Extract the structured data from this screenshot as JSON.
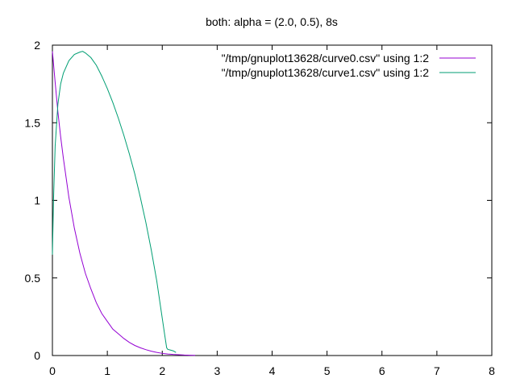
{
  "chart_data": {
    "type": "line",
    "title": "both: alpha = (2.0, 0.5), 8s",
    "xlabel": "",
    "ylabel": "",
    "xlim": [
      0,
      8
    ],
    "ylim": [
      0,
      2
    ],
    "x_ticks": [
      {
        "value": 0,
        "label": "0"
      },
      {
        "value": 1,
        "label": "1"
      },
      {
        "value": 2,
        "label": "2"
      },
      {
        "value": 3,
        "label": "3"
      },
      {
        "value": 4,
        "label": "4"
      },
      {
        "value": 5,
        "label": "5"
      },
      {
        "value": 6,
        "label": "6"
      },
      {
        "value": 7,
        "label": "7"
      },
      {
        "value": 8,
        "label": "8"
      }
    ],
    "y_ticks": [
      {
        "value": 0,
        "label": "0"
      },
      {
        "value": 0.5,
        "label": "0.5"
      },
      {
        "value": 1,
        "label": "1"
      },
      {
        "value": 1.5,
        "label": "1.5"
      },
      {
        "value": 2,
        "label": "2"
      }
    ],
    "grid": false,
    "legend_position": "top-right",
    "series": [
      {
        "name": "\"/tmp/gnuplot13628/curve0.csv\" using 1:2",
        "color": "#9400d3",
        "x": [
          0,
          0.05,
          0.1,
          0.15,
          0.2,
          0.3,
          0.4,
          0.5,
          0.6,
          0.7,
          0.8,
          0.9,
          1.0,
          1.1,
          1.2,
          1.3,
          1.4,
          1.5,
          1.6,
          1.7,
          1.8,
          1.9,
          2.0,
          2.1,
          2.2,
          2.3,
          2.4,
          2.5,
          2.6
        ],
        "y": [
          1.96,
          1.76,
          1.57,
          1.41,
          1.27,
          1.02,
          0.82,
          0.66,
          0.53,
          0.43,
          0.34,
          0.27,
          0.22,
          0.17,
          0.14,
          0.11,
          0.085,
          0.065,
          0.05,
          0.038,
          0.028,
          0.02,
          0.014,
          0.01,
          0.007,
          0.005,
          0.003,
          0.002,
          0.001
        ]
      },
      {
        "name": "\"/tmp/gnuplot13628/curve1.csv\" using 1:2",
        "color": "#009e73",
        "x": [
          0,
          0.02,
          0.05,
          0.1,
          0.15,
          0.2,
          0.3,
          0.4,
          0.5,
          0.55,
          0.6,
          0.7,
          0.8,
          0.9,
          1.0,
          1.1,
          1.2,
          1.3,
          1.4,
          1.5,
          1.6,
          1.7,
          1.8,
          1.9,
          2.0,
          2.05,
          2.08,
          2.1,
          2.15,
          2.2,
          2.25
        ],
        "y": [
          0.65,
          1.0,
          1.35,
          1.62,
          1.75,
          1.82,
          1.9,
          1.94,
          1.955,
          1.96,
          1.95,
          1.92,
          1.87,
          1.8,
          1.72,
          1.63,
          1.53,
          1.42,
          1.3,
          1.17,
          1.02,
          0.86,
          0.68,
          0.48,
          0.24,
          0.12,
          0.05,
          0.04,
          0.035,
          0.03,
          0.02
        ]
      }
    ]
  }
}
